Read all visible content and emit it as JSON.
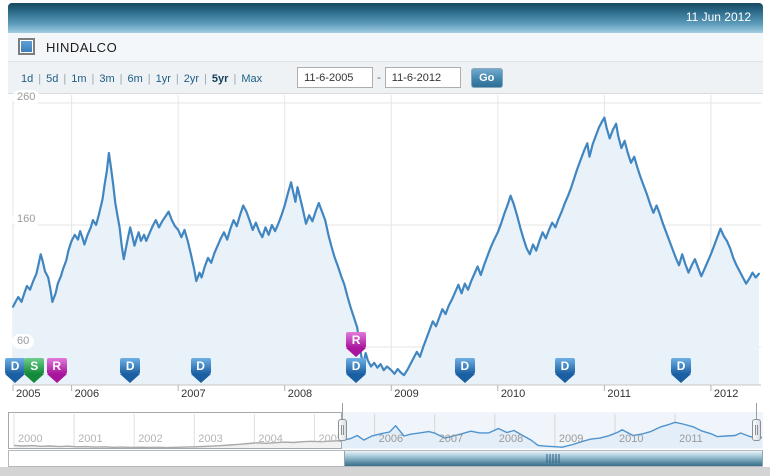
{
  "header": {
    "date": "11 Jun 2012"
  },
  "legend": {
    "label": "HINDALCO",
    "checked": true,
    "checkbox_color": "#4a8fc4"
  },
  "toolbar": {
    "ranges": [
      "1d",
      "5d",
      "1m",
      "3m",
      "6m",
      "1yr",
      "2yr",
      "5yr",
      "Max"
    ],
    "selected_range": "5yr",
    "date_from": "11-6-2005",
    "date_to": "11-6-2012",
    "range_separator": "-",
    "go_label": "Go"
  },
  "colors": {
    "accent_blue": "#4186c0",
    "area_fill": "#e9f1f9",
    "grid": "#e6e6e6",
    "axis_line": "#c6c6c6",
    "header_gradient_top": "#16495f",
    "header_gradient_bottom": "#a3cde1"
  },
  "chart_data": {
    "type": "line",
    "symbol": "HINDALCO",
    "x_unit": "decimal_year",
    "xlim": [
      2005.45,
      2012.47
    ],
    "ylim": [
      28,
      268
    ],
    "y_ticks": [
      60,
      160,
      260
    ],
    "x_ticks": [
      2005,
      2006,
      2007,
      2008,
      2009,
      2010,
      2011,
      2012
    ],
    "grid": true,
    "line_color": "#4186c0",
    "fill_color": "#e9f1f9",
    "points": [
      [
        2005.45,
        93
      ],
      [
        2005.48,
        98
      ],
      [
        2005.5,
        101
      ],
      [
        2005.53,
        97
      ],
      [
        2005.56,
        105
      ],
      [
        2005.58,
        110
      ],
      [
        2005.61,
        107
      ],
      [
        2005.64,
        114
      ],
      [
        2005.67,
        120
      ],
      [
        2005.69,
        128
      ],
      [
        2005.71,
        136
      ],
      [
        2005.73,
        130
      ],
      [
        2005.75,
        122
      ],
      [
        2005.78,
        117
      ],
      [
        2005.8,
        108
      ],
      [
        2005.82,
        97
      ],
      [
        2005.85,
        104
      ],
      [
        2005.87,
        112
      ],
      [
        2005.9,
        118
      ],
      [
        2005.92,
        124
      ],
      [
        2005.95,
        131
      ],
      [
        2005.97,
        139
      ],
      [
        2006.0,
        147
      ],
      [
        2006.03,
        152
      ],
      [
        2006.06,
        148
      ],
      [
        2006.08,
        155
      ],
      [
        2006.1,
        150
      ],
      [
        2006.12,
        144
      ],
      [
        2006.15,
        152
      ],
      [
        2006.18,
        158
      ],
      [
        2006.2,
        164
      ],
      [
        2006.23,
        160
      ],
      [
        2006.26,
        170
      ],
      [
        2006.29,
        181
      ],
      [
        2006.31,
        193
      ],
      [
        2006.33,
        204
      ],
      [
        2006.35,
        219
      ],
      [
        2006.37,
        207
      ],
      [
        2006.39,
        193
      ],
      [
        2006.41,
        178
      ],
      [
        2006.43,
        168
      ],
      [
        2006.45,
        158
      ],
      [
        2006.47,
        143
      ],
      [
        2006.49,
        132
      ],
      [
        2006.51,
        141
      ],
      [
        2006.53,
        150
      ],
      [
        2006.55,
        158
      ],
      [
        2006.57,
        151
      ],
      [
        2006.59,
        143
      ],
      [
        2006.61,
        149
      ],
      [
        2006.63,
        154
      ],
      [
        2006.65,
        147
      ],
      [
        2006.68,
        152
      ],
      [
        2006.7,
        147
      ],
      [
        2006.73,
        153
      ],
      [
        2006.76,
        159
      ],
      [
        2006.79,
        164
      ],
      [
        2006.82,
        158
      ],
      [
        2006.85,
        163
      ],
      [
        2006.88,
        167
      ],
      [
        2006.91,
        171
      ],
      [
        2006.94,
        164
      ],
      [
        2006.97,
        159
      ],
      [
        2007.0,
        156
      ],
      [
        2007.03,
        150
      ],
      [
        2007.06,
        156
      ],
      [
        2007.09,
        147
      ],
      [
        2007.12,
        136
      ],
      [
        2007.15,
        124
      ],
      [
        2007.17,
        114
      ],
      [
        2007.2,
        121
      ],
      [
        2007.22,
        117
      ],
      [
        2007.25,
        126
      ],
      [
        2007.28,
        133
      ],
      [
        2007.31,
        129
      ],
      [
        2007.34,
        137
      ],
      [
        2007.37,
        143
      ],
      [
        2007.4,
        149
      ],
      [
        2007.43,
        154
      ],
      [
        2007.46,
        148
      ],
      [
        2007.49,
        157
      ],
      [
        2007.52,
        164
      ],
      [
        2007.55,
        159
      ],
      [
        2007.58,
        168
      ],
      [
        2007.61,
        176
      ],
      [
        2007.64,
        171
      ],
      [
        2007.67,
        164
      ],
      [
        2007.7,
        156
      ],
      [
        2007.73,
        162
      ],
      [
        2007.76,
        155
      ],
      [
        2007.79,
        150
      ],
      [
        2007.82,
        158
      ],
      [
        2007.85,
        152
      ],
      [
        2007.88,
        160
      ],
      [
        2007.91,
        155
      ],
      [
        2007.94,
        161
      ],
      [
        2007.97,
        168
      ],
      [
        2008.0,
        176
      ],
      [
        2008.03,
        186
      ],
      [
        2008.06,
        195
      ],
      [
        2008.08,
        187
      ],
      [
        2008.1,
        179
      ],
      [
        2008.12,
        191
      ],
      [
        2008.14,
        184
      ],
      [
        2008.17,
        173
      ],
      [
        2008.2,
        161
      ],
      [
        2008.23,
        168
      ],
      [
        2008.26,
        163
      ],
      [
        2008.29,
        171
      ],
      [
        2008.32,
        178
      ],
      [
        2008.35,
        171
      ],
      [
        2008.38,
        164
      ],
      [
        2008.41,
        152
      ],
      [
        2008.44,
        142
      ],
      [
        2008.47,
        133
      ],
      [
        2008.5,
        126
      ],
      [
        2008.53,
        118
      ],
      [
        2008.56,
        111
      ],
      [
        2008.59,
        101
      ],
      [
        2008.62,
        92
      ],
      [
        2008.65,
        84
      ],
      [
        2008.68,
        76
      ],
      [
        2008.7,
        64
      ],
      [
        2008.72,
        52
      ],
      [
        2008.74,
        47
      ],
      [
        2008.76,
        55
      ],
      [
        2008.78,
        49
      ],
      [
        2008.81,
        44
      ],
      [
        2008.84,
        47
      ],
      [
        2008.87,
        43
      ],
      [
        2008.9,
        46
      ],
      [
        2008.93,
        41
      ],
      [
        2008.96,
        44
      ],
      [
        2009.0,
        41
      ],
      [
        2009.03,
        38
      ],
      [
        2009.06,
        42
      ],
      [
        2009.09,
        39
      ],
      [
        2009.12,
        37
      ],
      [
        2009.15,
        41
      ],
      [
        2009.18,
        46
      ],
      [
        2009.21,
        51
      ],
      [
        2009.24,
        56
      ],
      [
        2009.27,
        52
      ],
      [
        2009.3,
        60
      ],
      [
        2009.33,
        67
      ],
      [
        2009.36,
        74
      ],
      [
        2009.39,
        81
      ],
      [
        2009.42,
        77
      ],
      [
        2009.45,
        84
      ],
      [
        2009.48,
        91
      ],
      [
        2009.51,
        87
      ],
      [
        2009.54,
        94
      ],
      [
        2009.57,
        99
      ],
      [
        2009.6,
        105
      ],
      [
        2009.63,
        111
      ],
      [
        2009.66,
        104
      ],
      [
        2009.69,
        112
      ],
      [
        2009.72,
        107
      ],
      [
        2009.75,
        114
      ],
      [
        2009.78,
        120
      ],
      [
        2009.81,
        126
      ],
      [
        2009.84,
        119
      ],
      [
        2009.87,
        127
      ],
      [
        2009.9,
        134
      ],
      [
        2009.93,
        141
      ],
      [
        2009.96,
        147
      ],
      [
        2010.0,
        154
      ],
      [
        2010.03,
        161
      ],
      [
        2010.06,
        169
      ],
      [
        2010.09,
        176
      ],
      [
        2010.12,
        184
      ],
      [
        2010.15,
        177
      ],
      [
        2010.18,
        168
      ],
      [
        2010.21,
        158
      ],
      [
        2010.24,
        149
      ],
      [
        2010.27,
        141
      ],
      [
        2010.3,
        136
      ],
      [
        2010.33,
        144
      ],
      [
        2010.36,
        139
      ],
      [
        2010.39,
        147
      ],
      [
        2010.42,
        154
      ],
      [
        2010.45,
        149
      ],
      [
        2010.48,
        156
      ],
      [
        2010.51,
        162
      ],
      [
        2010.54,
        158
      ],
      [
        2010.57,
        165
      ],
      [
        2010.6,
        171
      ],
      [
        2010.63,
        178
      ],
      [
        2010.66,
        184
      ],
      [
        2010.69,
        191
      ],
      [
        2010.72,
        199
      ],
      [
        2010.75,
        207
      ],
      [
        2010.78,
        214
      ],
      [
        2010.81,
        221
      ],
      [
        2010.84,
        227
      ],
      [
        2010.86,
        216
      ],
      [
        2010.89,
        226
      ],
      [
        2010.92,
        233
      ],
      [
        2010.95,
        240
      ],
      [
        2010.98,
        245
      ],
      [
        2011.0,
        248
      ],
      [
        2011.02,
        240
      ],
      [
        2011.05,
        231
      ],
      [
        2011.08,
        238
      ],
      [
        2011.11,
        243
      ],
      [
        2011.13,
        233
      ],
      [
        2011.16,
        223
      ],
      [
        2011.19,
        229
      ],
      [
        2011.22,
        219
      ],
      [
        2011.25,
        211
      ],
      [
        2011.28,
        216
      ],
      [
        2011.31,
        207
      ],
      [
        2011.34,
        199
      ],
      [
        2011.37,
        192
      ],
      [
        2011.4,
        185
      ],
      [
        2011.43,
        177
      ],
      [
        2011.46,
        170
      ],
      [
        2011.49,
        176
      ],
      [
        2011.52,
        169
      ],
      [
        2011.55,
        161
      ],
      [
        2011.58,
        154
      ],
      [
        2011.61,
        147
      ],
      [
        2011.64,
        140
      ],
      [
        2011.67,
        133
      ],
      [
        2011.7,
        127
      ],
      [
        2011.73,
        136
      ],
      [
        2011.76,
        128
      ],
      [
        2011.79,
        121
      ],
      [
        2011.82,
        127
      ],
      [
        2011.85,
        132
      ],
      [
        2011.88,
        125
      ],
      [
        2011.91,
        118
      ],
      [
        2011.94,
        124
      ],
      [
        2011.97,
        130
      ],
      [
        2012.0,
        136
      ],
      [
        2012.03,
        143
      ],
      [
        2012.06,
        150
      ],
      [
        2012.09,
        157
      ],
      [
        2012.12,
        151
      ],
      [
        2012.15,
        147
      ],
      [
        2012.18,
        141
      ],
      [
        2012.21,
        133
      ],
      [
        2012.24,
        127
      ],
      [
        2012.27,
        122
      ],
      [
        2012.3,
        117
      ],
      [
        2012.33,
        112
      ],
      [
        2012.36,
        116
      ],
      [
        2012.39,
        121
      ],
      [
        2012.42,
        117
      ],
      [
        2012.45,
        120
      ]
    ],
    "events": [
      {
        "label": "D",
        "x": 2005.47,
        "row": 0,
        "kind": "dividend"
      },
      {
        "label": "S",
        "x": 2005.65,
        "row": 0,
        "kind": "split"
      },
      {
        "label": "R",
        "x": 2005.86,
        "row": 0,
        "kind": "rights"
      },
      {
        "label": "D",
        "x": 2006.55,
        "row": 0,
        "kind": "dividend"
      },
      {
        "label": "D",
        "x": 2007.21,
        "row": 0,
        "kind": "dividend"
      },
      {
        "label": "R",
        "x": 2008.67,
        "row": 1,
        "kind": "rights"
      },
      {
        "label": "D",
        "x": 2008.67,
        "row": 0,
        "kind": "dividend"
      },
      {
        "label": "D",
        "x": 2009.69,
        "row": 0,
        "kind": "dividend"
      },
      {
        "label": "D",
        "x": 2010.63,
        "row": 0,
        "kind": "dividend"
      },
      {
        "label": "D",
        "x": 2011.72,
        "row": 0,
        "kind": "dividend"
      }
    ],
    "event_styles": {
      "dividend": {
        "top": "#6fb0e4",
        "bottom": "#1b5fa3"
      },
      "split": {
        "top": "#6fce8a",
        "bottom": "#128a39"
      },
      "rights": {
        "top": "#e27add",
        "bottom": "#a8159c"
      }
    },
    "navigator": {
      "xlim": [
        2000,
        2012.47
      ],
      "x_ticks": [
        2000,
        2001,
        2002,
        2003,
        2004,
        2005,
        2006,
        2007,
        2008,
        2009,
        2010,
        2011
      ],
      "selection": [
        2005.45,
        2012.47
      ],
      "dim_line_color": "#8c8c8c",
      "dim_fill_color": "#ececec",
      "line_color": "#4f93ce",
      "fill_color": "#e4eef8",
      "points": [
        [
          2000.0,
          52
        ],
        [
          2000.15,
          47
        ],
        [
          2000.3,
          50
        ],
        [
          2000.45,
          44
        ],
        [
          2000.6,
          47
        ],
        [
          2000.75,
          42
        ],
        [
          2000.9,
          45
        ],
        [
          2001.05,
          40
        ],
        [
          2001.2,
          42
        ],
        [
          2001.35,
          38
        ],
        [
          2001.5,
          40
        ],
        [
          2001.65,
          36
        ],
        [
          2001.8,
          38
        ],
        [
          2001.95,
          35
        ],
        [
          2002.1,
          37
        ],
        [
          2002.25,
          34
        ],
        [
          2002.4,
          36
        ],
        [
          2002.55,
          33
        ],
        [
          2002.7,
          36
        ],
        [
          2002.85,
          38
        ],
        [
          2003.0,
          40
        ],
        [
          2003.15,
          43
        ],
        [
          2003.3,
          46
        ],
        [
          2003.45,
          50
        ],
        [
          2003.6,
          55
        ],
        [
          2003.75,
          61
        ],
        [
          2003.9,
          68
        ],
        [
          2004.05,
          74
        ],
        [
          2004.2,
          70
        ],
        [
          2004.35,
          75
        ],
        [
          2004.5,
          80
        ],
        [
          2004.65,
          77
        ],
        [
          2004.8,
          83
        ],
        [
          2004.95,
          87
        ],
        [
          2005.1,
          83
        ],
        [
          2005.25,
          88
        ],
        [
          2005.45,
          93
        ],
        [
          2005.6,
          110
        ],
        [
          2005.71,
          136
        ],
        [
          2005.82,
          97
        ],
        [
          2005.95,
          131
        ],
        [
          2006.1,
          150
        ],
        [
          2006.25,
          166
        ],
        [
          2006.35,
          219
        ],
        [
          2006.49,
          132
        ],
        [
          2006.6,
          147
        ],
        [
          2006.75,
          158
        ],
        [
          2006.9,
          169
        ],
        [
          2007.0,
          156
        ],
        [
          2007.17,
          114
        ],
        [
          2007.3,
          131
        ],
        [
          2007.45,
          150
        ],
        [
          2007.6,
          172
        ],
        [
          2007.75,
          158
        ],
        [
          2007.9,
          158
        ],
        [
          2008.06,
          195
        ],
        [
          2008.2,
          161
        ],
        [
          2008.32,
          178
        ],
        [
          2008.45,
          140
        ],
        [
          2008.6,
          98
        ],
        [
          2008.72,
          52
        ],
        [
          2008.85,
          45
        ],
        [
          2009.0,
          41
        ],
        [
          2009.12,
          37
        ],
        [
          2009.3,
          60
        ],
        [
          2009.45,
          84
        ],
        [
          2009.6,
          105
        ],
        [
          2009.75,
          114
        ],
        [
          2009.9,
          134
        ],
        [
          2010.05,
          165
        ],
        [
          2010.12,
          184
        ],
        [
          2010.3,
          136
        ],
        [
          2010.45,
          149
        ],
        [
          2010.6,
          171
        ],
        [
          2010.75,
          207
        ],
        [
          2010.9,
          230
        ],
        [
          2011.0,
          248
        ],
        [
          2011.13,
          233
        ],
        [
          2011.3,
          210
        ],
        [
          2011.45,
          173
        ],
        [
          2011.6,
          150
        ],
        [
          2011.7,
          127
        ],
        [
          2011.85,
          132
        ],
        [
          2012.0,
          136
        ],
        [
          2012.09,
          157
        ],
        [
          2012.25,
          127
        ],
        [
          2012.36,
          116
        ],
        [
          2012.45,
          120
        ]
      ]
    }
  }
}
